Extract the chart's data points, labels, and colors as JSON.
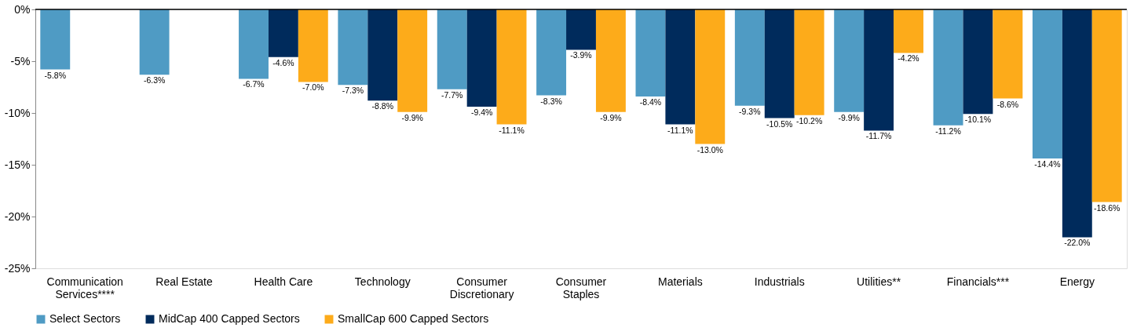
{
  "chart_data": {
    "type": "bar",
    "categories": [
      "Communication Services****",
      "Real Estate",
      "Health Care",
      "Technology",
      "Consumer Discretionary",
      "Consumer Staples",
      "Materials",
      "Industrials",
      "Utilities**",
      "Financials***",
      "Energy"
    ],
    "series": [
      {
        "name": "Select Sectors",
        "color": "#4f9bc4",
        "values": [
          -5.8,
          -6.3,
          -6.7,
          -7.3,
          -7.7,
          -8.3,
          -8.4,
          -9.3,
          -9.9,
          -11.2,
          -14.4
        ],
        "value_labels": [
          "-5.8%",
          "-6.3%",
          "-6.7%",
          "-7.3%",
          "-7.7%",
          "-8.3%",
          "-8.4%",
          "-9.3%",
          "-9.9%",
          "-11.2%",
          "-14.4%"
        ]
      },
      {
        "name": "MidCap 400 Capped Sectors",
        "color": "#002b5c",
        "values": [
          null,
          null,
          -4.6,
          -8.8,
          -9.4,
          -3.9,
          -11.1,
          -10.5,
          -11.7,
          -10.1,
          -22.0
        ],
        "value_labels": [
          null,
          null,
          "-4.6%",
          "-8.8%",
          "-9.4%",
          "-3.9%",
          "-11.1%",
          "-10.5%",
          "-11.7%",
          "-10.1%",
          "-22.0%"
        ]
      },
      {
        "name": "SmallCap 600 Capped Sectors",
        "color": "#fdab1a",
        "values": [
          null,
          null,
          -7.0,
          -9.9,
          -11.1,
          -9.9,
          -13.0,
          -10.2,
          -4.2,
          -8.6,
          -18.6
        ],
        "value_labels": [
          null,
          null,
          "-7.0%",
          "-9.9%",
          "-11.1%",
          "-9.9%",
          "-13.0%",
          "-10.2%",
          "-4.2%",
          "-8.6%",
          "-18.6%"
        ]
      }
    ],
    "ylim": [
      -25,
      0
    ],
    "yticks": [
      {
        "value": 0,
        "label": "0%"
      },
      {
        "value": -5,
        "label": "-5%"
      },
      {
        "value": -10,
        "label": "-10%"
      },
      {
        "value": -15,
        "label": "-15%"
      },
      {
        "value": -20,
        "label": "-20%"
      },
      {
        "value": -25,
        "label": "-25%"
      }
    ],
    "grid": false,
    "legend": "bottom"
  }
}
